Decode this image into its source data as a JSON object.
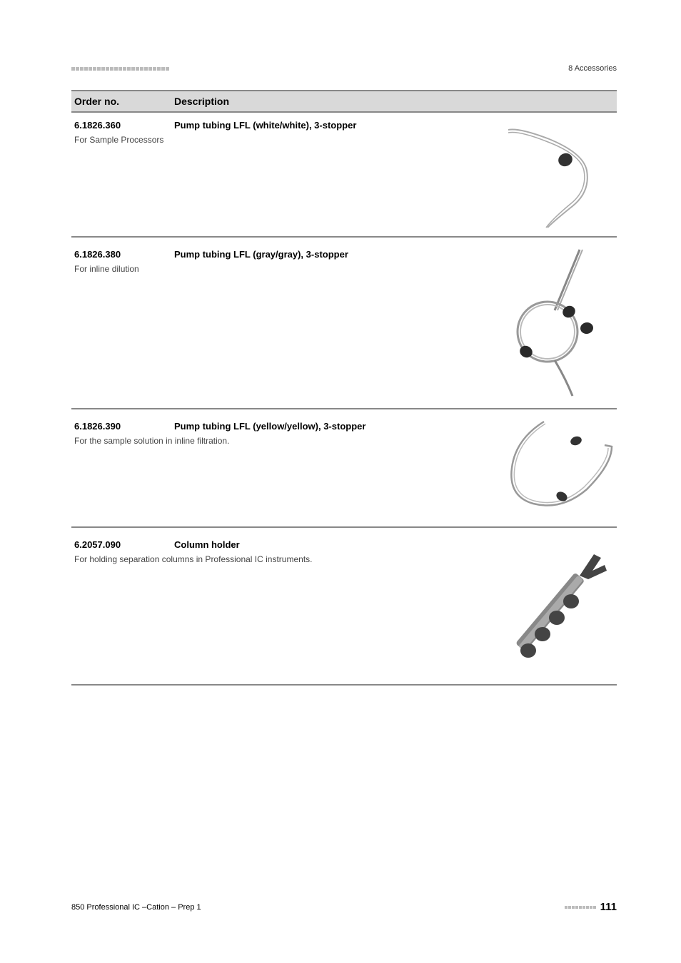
{
  "header": {
    "section_label": "8 Accessories",
    "dash_count": 23
  },
  "table": {
    "col_order": "Order no.",
    "col_desc": "Description"
  },
  "items": [
    {
      "order": "6.1826.360",
      "title": "Pump tubing LFL (white/white), 3-stopper",
      "desc": "For Sample Processors"
    },
    {
      "order": "6.1826.380",
      "title": "Pump tubing LFL (gray/gray), 3-stopper",
      "desc": "For inline dilution"
    },
    {
      "order": "6.1826.390",
      "title": "Pump tubing LFL (yellow/yellow), 3-stopper",
      "desc": "For the sample solution in inline filtration."
    },
    {
      "order": "6.2057.090",
      "title": "Column holder",
      "desc": "For holding separation columns in Professional IC instruments."
    }
  ],
  "footer": {
    "left": "850 Professional IC –Cation – Prep 1",
    "page": "111",
    "dash_count": 9
  },
  "colors": {
    "header_bg": "#d9d9d9",
    "border": "#888888",
    "dash": "#bbbbbb",
    "text": "#333333"
  }
}
